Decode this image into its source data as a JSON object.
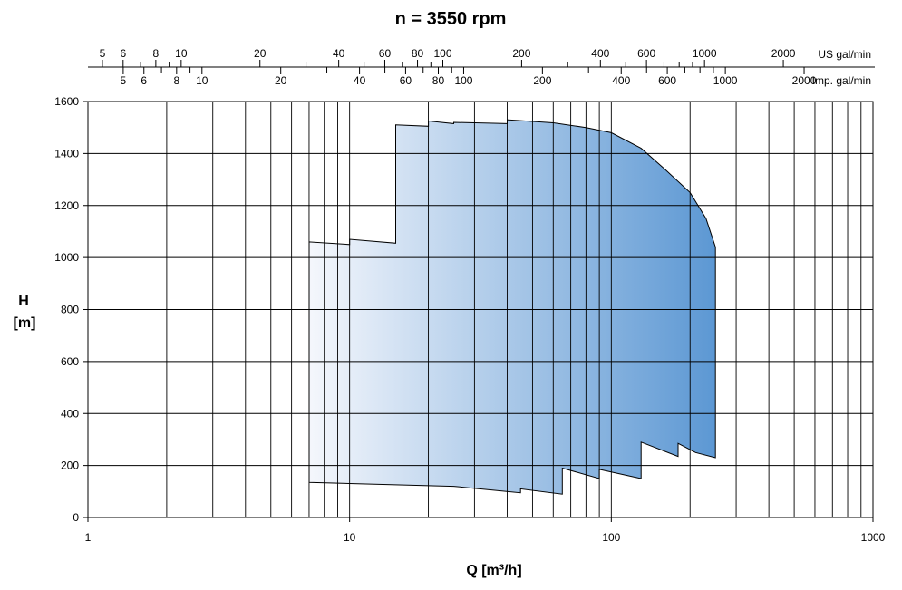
{
  "chart_data": {
    "type": "area",
    "title": "n = 3550 rpm",
    "xlabel": "Q [m³/h]",
    "ylabel_line1": "H",
    "ylabel_line2": "[m]",
    "x_scale": "log",
    "xlim": [
      1,
      1000
    ],
    "ylim": [
      0,
      1600
    ],
    "grid": true,
    "x_ticks": [
      1,
      10,
      100,
      1000
    ],
    "x_tick_labels": [
      "1",
      "10",
      "100",
      "1000"
    ],
    "y_ticks": [
      0,
      200,
      400,
      600,
      800,
      1000,
      1200,
      1400,
      1600
    ],
    "y_tick_labels": [
      "0",
      "200",
      "400",
      "600",
      "800",
      "1000",
      "1200",
      "1400",
      "1600"
    ],
    "us_axis": {
      "unit_label": "US gal/min",
      "labeled_ticks": [
        5,
        6,
        8,
        10,
        20,
        40,
        60,
        80,
        100,
        200,
        400,
        600,
        1000,
        2000
      ],
      "labels": [
        "5",
        "6",
        "8",
        "10",
        "20",
        "40",
        "60",
        "80",
        "100",
        "200",
        "400",
        "600",
        "1000",
        "2000"
      ],
      "minor_ticks": [
        7,
        9,
        30,
        50,
        70,
        90,
        300,
        500,
        700,
        800,
        900
      ]
    },
    "imp_axis": {
      "unit_label": "Imp. gal/min",
      "labeled_ticks": [
        5,
        6,
        8,
        10,
        20,
        40,
        60,
        80,
        100,
        200,
        400,
        600,
        1000,
        2000
      ],
      "labels": [
        "5",
        "6",
        "8",
        "10",
        "20",
        "40",
        "60",
        "80",
        "100",
        "200",
        "400",
        "600",
        "1000",
        "2000"
      ],
      "minor_ticks": [
        7,
        9,
        30,
        50,
        70,
        90,
        300,
        500,
        700,
        800,
        900
      ]
    },
    "envelope": {
      "color_start": "#f5f7fc",
      "color_end": "#5b97d3",
      "stroke": "#000000",
      "points": [
        [
          7,
          135
        ],
        [
          7,
          1060
        ],
        [
          10,
          1050
        ],
        [
          10,
          1070
        ],
        [
          15,
          1055
        ],
        [
          15,
          1510
        ],
        [
          20,
          1505
        ],
        [
          20,
          1525
        ],
        [
          25,
          1515
        ],
        [
          25,
          1520
        ],
        [
          40,
          1515
        ],
        [
          40,
          1530
        ],
        [
          60,
          1518
        ],
        [
          80,
          1500
        ],
        [
          100,
          1480
        ],
        [
          130,
          1420
        ],
        [
          160,
          1340
        ],
        [
          200,
          1250
        ],
        [
          230,
          1150
        ],
        [
          250,
          1040
        ],
        [
          250,
          230
        ],
        [
          210,
          250
        ],
        [
          180,
          285
        ],
        [
          180,
          235
        ],
        [
          130,
          290
        ],
        [
          130,
          150
        ],
        [
          90,
          185
        ],
        [
          90,
          150
        ],
        [
          65,
          190
        ],
        [
          65,
          90
        ],
        [
          45,
          110
        ],
        [
          45,
          95
        ],
        [
          25,
          120
        ],
        [
          7,
          135
        ]
      ]
    }
  }
}
